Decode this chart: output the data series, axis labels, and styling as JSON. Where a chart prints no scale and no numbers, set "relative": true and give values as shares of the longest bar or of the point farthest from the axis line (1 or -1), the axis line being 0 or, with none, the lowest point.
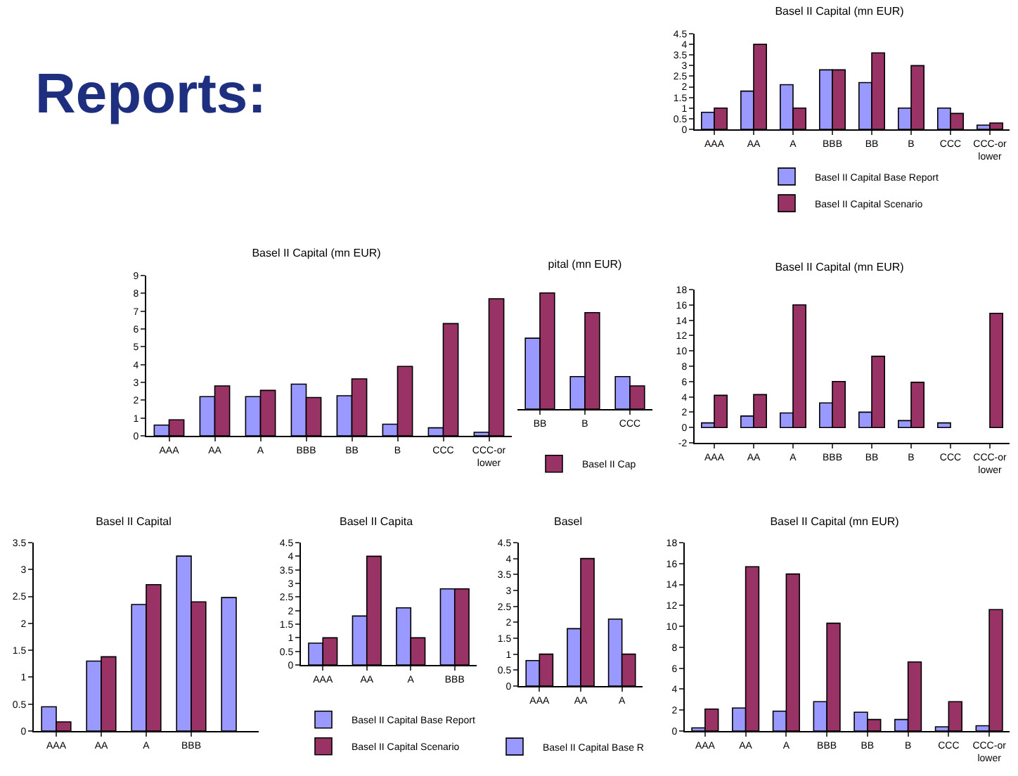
{
  "chart_data": [
    {
      "type": "other",
      "title": "Reports:"
    },
    {
      "type": "bar",
      "title": "Basel II Capital (mn EUR)",
      "categories": [
        "AAA",
        "AA",
        "A",
        "BBB",
        "BB",
        "B",
        "CCC",
        "CCC-or lower"
      ],
      "ylim": [
        0,
        4.5
      ],
      "yticks": [
        0,
        0.5,
        1,
        1.5,
        2,
        2.5,
        3,
        3.5,
        4,
        4.5
      ],
      "legend": "bottom",
      "series": [
        {
          "name": "Basel II Capital Base Report",
          "color": "#9999ff",
          "values": [
            0.8,
            1.8,
            2.1,
            2.8,
            2.2,
            1.0,
            1.0,
            0.2
          ]
        },
        {
          "name": "Basel II Capital Scenario",
          "color": "#993366",
          "values": [
            1.0,
            4.0,
            1.0,
            2.8,
            3.6,
            3.0,
            0.75,
            0.3
          ]
        }
      ]
    },
    {
      "type": "bar",
      "title": "Basel II Capital (mn EUR)",
      "categories": [
        "AAA",
        "AA",
        "A",
        "BBB",
        "BB",
        "B",
        "CCC",
        "CCC-or lower"
      ],
      "ylim": [
        0,
        9
      ],
      "yticks": [
        0,
        1,
        2,
        3,
        4,
        5,
        6,
        7,
        8,
        9
      ],
      "series": [
        {
          "color": "#9999ff",
          "values": [
            0.6,
            2.2,
            2.2,
            2.9,
            2.25,
            0.65,
            0.45,
            0.2
          ]
        },
        {
          "color": "#993366",
          "values": [
            0.9,
            2.8,
            2.55,
            2.15,
            3.2,
            3.9,
            6.3,
            7.7
          ]
        }
      ]
    },
    {
      "type": "bar",
      "title": "pital (mn EUR)",
      "categories": [
        "BB",
        "B",
        "CCC"
      ],
      "relative": true,
      "legend": "bottom",
      "series": [
        {
          "color": "#9999ff",
          "values": [
            0.61,
            0.28,
            0.28
          ]
        },
        {
          "name": "Basel II Cap",
          "color": "#993366",
          "values": [
            1,
            0.83,
            0.2
          ]
        }
      ]
    },
    {
      "type": "bar",
      "title": "Basel II Capital (mn EUR)",
      "categories": [
        "AAA",
        "AA",
        "A",
        "BBB",
        "BB",
        "B",
        "CCC",
        "CCC-or lower"
      ],
      "ylim": [
        -2,
        18
      ],
      "yticks": [
        -2,
        0,
        2,
        4,
        6,
        8,
        10,
        12,
        14,
        16,
        18
      ],
      "series": [
        {
          "color": "#9999ff",
          "values": [
            0.6,
            1.5,
            1.9,
            3.2,
            2.0,
            0.9,
            0.6,
            null
          ]
        },
        {
          "color": "#993366",
          "values": [
            4.2,
            4.3,
            16,
            6,
            9.3,
            5.9,
            null,
            14.9
          ]
        }
      ]
    },
    {
      "type": "bar",
      "title": "Basel II Capital",
      "categories": [
        "AAA",
        "AA",
        "A",
        "BBB",
        null
      ],
      "ylim": [
        0,
        3.5
      ],
      "yticks": [
        0,
        0.5,
        1,
        1.5,
        2,
        2.5,
        3,
        3.5
      ],
      "series": [
        {
          "color": "#9999ff",
          "values": [
            0.45,
            1.3,
            2.35,
            3.25,
            2.48
          ]
        },
        {
          "color": "#993366",
          "values": [
            0.17,
            1.38,
            2.72,
            2.4,
            null
          ]
        }
      ]
    },
    {
      "type": "bar",
      "title": "Basel II Capita",
      "categories": [
        "AAA",
        "AA",
        "A",
        "BBB"
      ],
      "ylim": [
        0,
        4.5
      ],
      "yticks": [
        0,
        0.5,
        1,
        1.5,
        2,
        2.5,
        3,
        3.5,
        4,
        4.5
      ],
      "legend": "bottom",
      "series": [
        {
          "name": "Basel II Capital Base Report",
          "color": "#9999ff",
          "values": [
            0.8,
            1.8,
            2.1,
            2.8
          ]
        },
        {
          "name": "Basel II Capital Scenario",
          "color": "#993366",
          "values": [
            1,
            4,
            1,
            2.8
          ]
        }
      ]
    },
    {
      "type": "bar",
      "title": "Basel",
      "categories": [
        "AAA",
        "AA",
        "A"
      ],
      "ylim": [
        0,
        4.5
      ],
      "yticks": [
        0,
        0.5,
        1,
        1.5,
        2,
        2.5,
        3,
        3.5,
        4,
        4.5
      ],
      "legend": "bottom",
      "series": [
        {
          "name": "Basel II Capital Base R",
          "color": "#9999ff",
          "values": [
            0.8,
            1.8,
            2.1
          ]
        },
        {
          "color": "#993366",
          "values": [
            1,
            4,
            1
          ]
        }
      ]
    },
    {
      "type": "bar",
      "title": "Basel II Capital (mn EUR)",
      "categories": [
        "AAA",
        "AA",
        "A",
        "BBB",
        "BB",
        "B",
        "CCC",
        "CCC-or lower"
      ],
      "ylim": [
        0,
        18
      ],
      "yticks": [
        0,
        2,
        4,
        6,
        8,
        10,
        12,
        14,
        16,
        18
      ],
      "series": [
        {
          "color": "#9999ff",
          "values": [
            0.3,
            2.2,
            1.9,
            2.8,
            1.8,
            1.1,
            0.4,
            0.5
          ]
        },
        {
          "color": "#993366",
          "values": [
            2.1,
            15.7,
            15,
            10.3,
            1.1,
            6.6,
            2.8,
            11.6
          ]
        }
      ]
    }
  ]
}
